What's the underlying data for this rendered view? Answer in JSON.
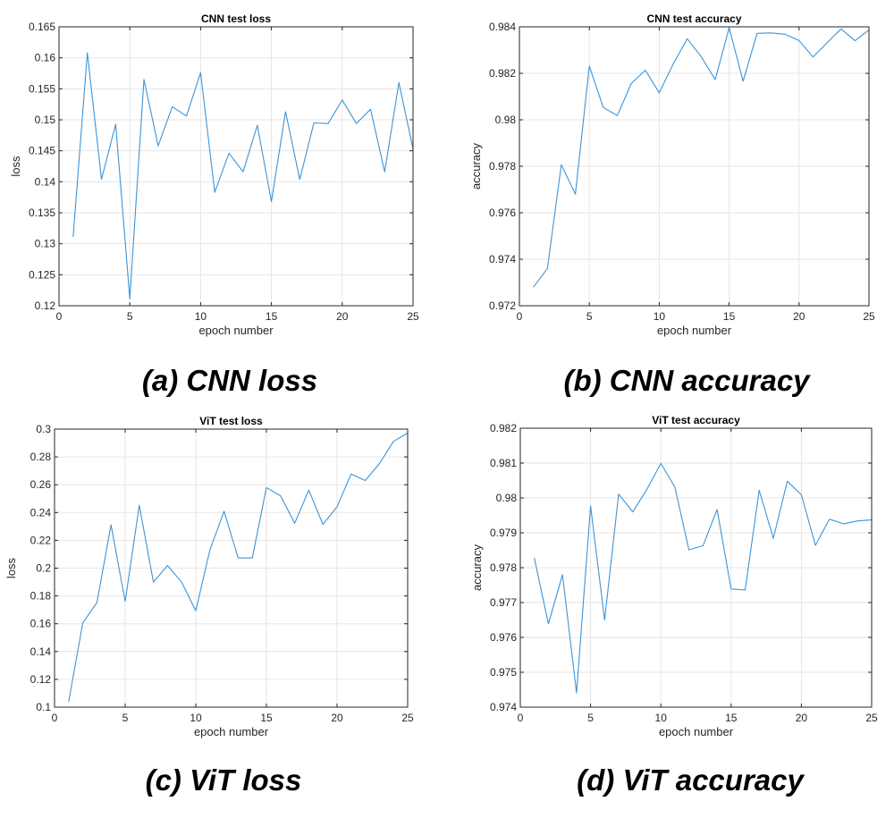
{
  "line_color": "#3d94d6",
  "chart_data": [
    {
      "type": "line",
      "title": "CNN test loss",
      "xlabel": "epoch number",
      "ylabel": "loss",
      "caption": "(a) CNN loss",
      "xlim": [
        0,
        25
      ],
      "ylim": [
        0.12,
        0.165
      ],
      "xticks": [
        0,
        5,
        10,
        15,
        20,
        25
      ],
      "yticks": [
        0.12,
        0.125,
        0.13,
        0.135,
        0.14,
        0.145,
        0.15,
        0.155,
        0.16,
        0.165
      ],
      "grid": true,
      "x": [
        1,
        2,
        3,
        4,
        5,
        6,
        7,
        8,
        9,
        10,
        11,
        12,
        13,
        14,
        15,
        16,
        17,
        18,
        19,
        20,
        21,
        22,
        23,
        24,
        25
      ],
      "values": [
        0.1311,
        0.1608,
        0.1404,
        0.1493,
        0.1211,
        0.1565,
        0.1458,
        0.1521,
        0.1506,
        0.1576,
        0.1383,
        0.1446,
        0.1416,
        0.1491,
        0.1368,
        0.1513,
        0.1404,
        0.1495,
        0.1494,
        0.1532,
        0.1494,
        0.1517,
        0.1416,
        0.156,
        0.1453
      ]
    },
    {
      "type": "line",
      "title": "CNN test accuracy",
      "xlabel": "epoch number",
      "ylabel": "accuracy",
      "caption": "(b) CNN accuracy",
      "xlim": [
        0,
        25
      ],
      "ylim": [
        0.972,
        0.984
      ],
      "xticks": [
        0,
        5,
        10,
        15,
        20,
        25
      ],
      "yticks": [
        0.972,
        0.974,
        0.976,
        0.978,
        0.98,
        0.982,
        0.984
      ],
      "grid": true,
      "x": [
        1,
        2,
        3,
        4,
        5,
        6,
        7,
        8,
        9,
        10,
        11,
        12,
        13,
        14,
        15,
        16,
        17,
        18,
        19,
        20,
        21,
        22,
        23,
        24,
        25
      ],
      "values": [
        0.9728,
        0.9736,
        0.97807,
        0.9768,
        0.98231,
        0.98053,
        0.98018,
        0.98156,
        0.98213,
        0.98116,
        0.9824,
        0.98349,
        0.98272,
        0.98173,
        0.98396,
        0.98166,
        0.98372,
        0.98374,
        0.98368,
        0.98341,
        0.9827,
        0.98331,
        0.98391,
        0.9834,
        0.98387
      ]
    },
    {
      "type": "line",
      "title": "ViT test loss",
      "xlabel": "epoch number",
      "ylabel": "loss",
      "caption": "(c) ViT loss",
      "xlim": [
        0,
        25
      ],
      "ylim": [
        0.1,
        0.3
      ],
      "xticks": [
        0,
        5,
        10,
        15,
        20,
        25
      ],
      "yticks": [
        0.1,
        0.12,
        0.14,
        0.16,
        0.18,
        0.2,
        0.22,
        0.24,
        0.26,
        0.28,
        0.3
      ],
      "grid": true,
      "x": [
        1,
        2,
        3,
        4,
        5,
        6,
        7,
        8,
        9,
        10,
        11,
        12,
        13,
        14,
        15,
        16,
        17,
        18,
        19,
        20,
        21,
        22,
        23,
        24,
        25
      ],
      "values": [
        0.1039,
        0.1606,
        0.1752,
        0.2311,
        0.176,
        0.2452,
        0.1899,
        0.2019,
        0.1899,
        0.1694,
        0.2131,
        0.2409,
        0.2073,
        0.2073,
        0.258,
        0.252,
        0.2323,
        0.2561,
        0.2315,
        0.2441,
        0.2677,
        0.263,
        0.2752,
        0.2912,
        0.2972
      ]
    },
    {
      "type": "line",
      "title": "ViT test accuracy",
      "xlabel": "epoch number",
      "ylabel": "accuracy",
      "caption": "(d) ViT accuracy",
      "xlim": [
        0,
        25
      ],
      "ylim": [
        0.974,
        0.982
      ],
      "xticks": [
        0,
        5,
        10,
        15,
        20,
        25
      ],
      "yticks": [
        0.974,
        0.975,
        0.976,
        0.977,
        0.978,
        0.979,
        0.98,
        0.981,
        0.982
      ],
      "grid": true,
      "x": [
        1,
        2,
        3,
        4,
        5,
        6,
        7,
        8,
        9,
        10,
        11,
        12,
        13,
        14,
        15,
        16,
        17,
        18,
        19,
        20,
        21,
        22,
        23,
        24,
        25
      ],
      "values": [
        0.97828,
        0.97639,
        0.9778,
        0.97441,
        0.97977,
        0.9765,
        0.98011,
        0.9796,
        0.98024,
        0.98099,
        0.98031,
        0.97851,
        0.97863,
        0.97967,
        0.97739,
        0.97736,
        0.98022,
        0.97884,
        0.98048,
        0.98009,
        0.97864,
        0.97939,
        0.97926,
        0.97934,
        0.97937
      ]
    }
  ]
}
